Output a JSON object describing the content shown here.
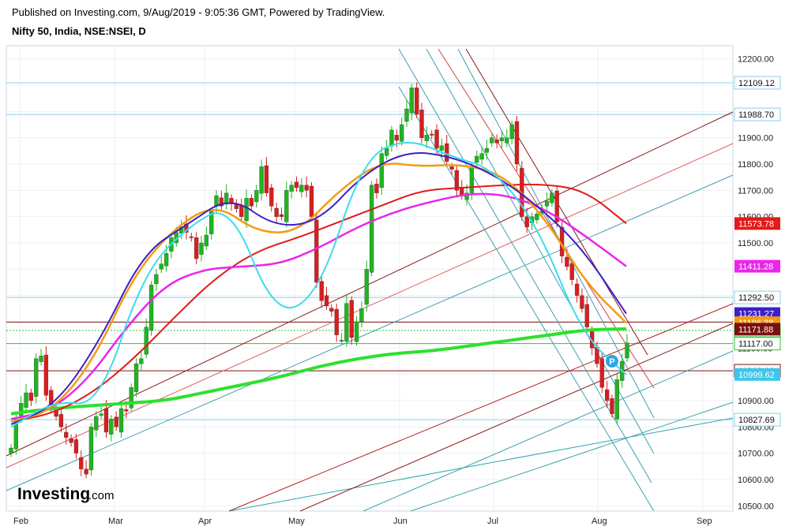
{
  "header": {
    "published": "Published on Investing.com, 9/Aug/2019 - 9:05:36 GMT, Powered by TradingView.",
    "symbol": "Nifty 50, India, NSE:NSEI, D"
  },
  "brand": {
    "name": "Investing",
    "suffix": ".com"
  },
  "chart_data": {
    "type": "candlestick",
    "title": "Nifty 50, India, NSE:NSEI, D",
    "x_labels": [
      "Feb",
      "Mar",
      "Apr",
      "May",
      "Jun",
      "Jul",
      "Aug",
      "Sep"
    ],
    "y_ticks": [
      10500,
      10600,
      10700,
      10800,
      10900,
      11000,
      11100,
      11200,
      11300,
      11400,
      11500,
      11600,
      11700,
      11800,
      11900,
      12000,
      12100,
      12200
    ],
    "y_tick_labels": [
      "10500.00",
      "10600.00",
      "10700.00",
      "10800.00",
      "10900.00",
      "11000.00",
      "11100.00",
      "11200.00",
      "11300.00",
      "11400.00",
      "11500.00",
      "11600.00",
      "11700.00",
      "11800.00",
      "11900.00",
      "12000.00",
      "12100.00",
      "12200.00"
    ],
    "ylim": [
      10480,
      12250
    ],
    "up_color": "#1fb51f",
    "down_color": "#d81e1e",
    "closes_approx": [
      10720,
      10830,
      10890,
      10930,
      10900,
      11060,
      11070,
      10920,
      10880,
      10840,
      10800,
      10760,
      10740,
      10700,
      10640,
      10620,
      10800,
      10840,
      10850,
      10780,
      10830,
      10800,
      10870,
      10860,
      10950,
      11040,
      11060,
      11180,
      11340,
      11380,
      11420,
      11460,
      11520,
      11540,
      11560,
      11540,
      11520,
      11440,
      11500,
      11530,
      11620,
      11680,
      11640,
      11690,
      11650,
      11630,
      11600,
      11670,
      11640,
      11700,
      11790,
      11690,
      11640,
      11600,
      11600,
      11700,
      11720,
      11710,
      11720,
      11700,
      11600,
      11350,
      11280,
      11260,
      11240,
      11150,
      11130,
      11270,
      11140,
      11200,
      11250,
      11400,
      11720,
      11690,
      11840,
      11860,
      11930,
      11890,
      11950,
      12010,
      12090,
      11990,
      11900,
      11910,
      11910,
      11860,
      11870,
      11810,
      11780,
      11700,
      11680,
      11690,
      11790,
      11830,
      11840,
      11860,
      11900,
      11880,
      11900,
      11900,
      11950,
      11800,
      11600,
      11560,
      11600,
      11610,
      11620,
      11660,
      11690,
      11580,
      11450,
      11410,
      11360,
      11300,
      11250,
      11180,
      11100,
      11040,
      10950,
      10900,
      10850,
      10980,
      11050,
      11120
    ],
    "annotations": {
      "horizontal_levels": [
        {
          "value": 12109.12,
          "label": "12109.12",
          "color": "#8ad0e8",
          "label_bg": "#ffffff",
          "label_fg": "#111111",
          "label_border": "#8ad0e8"
        },
        {
          "value": 11988.7,
          "label": "11988.70",
          "color": "#8ad0e8",
          "label_bg": "#ffffff",
          "label_fg": "#111111",
          "label_border": "#8ad0e8"
        },
        {
          "value": 11292.5,
          "label": "11292.50",
          "color": "#8ad0e8",
          "label_bg": "#ffffff",
          "label_fg": "#111111",
          "label_border": "#8ad0e8"
        },
        {
          "value": 11199.0,
          "label": "",
          "color": "#7a1010",
          "label_bg": "",
          "label_fg": "",
          "label_border": ""
        },
        {
          "value": 11166.94,
          "label": "11166.94",
          "color": "#2fc42f",
          "label_bg": "#ffffff",
          "label_fg": "#111111",
          "label_border": "#2fc42f",
          "dashed": true
        },
        {
          "value": 11117.0,
          "label": "11117.00",
          "color": "#2fc42f",
          "label_bg": "#ffffff",
          "label_fg": "#111111",
          "label_border": "#2fc42f"
        },
        {
          "value": 11013.63,
          "label": "11013.63",
          "color": "#7a1010",
          "label_bg": "#ffffff",
          "label_fg": "#111111",
          "label_border": "#7a1010"
        },
        {
          "value": 10827.69,
          "label": "10827.69",
          "color": "#8ad0e8",
          "label_bg": "#ffffff",
          "label_fg": "#111111",
          "label_border": "#8ad0e8"
        }
      ],
      "price_tags": [
        {
          "value": 11573.78,
          "label": "11573.78",
          "bg": "#e31a1a"
        },
        {
          "value": 11411.28,
          "label": "11411.28",
          "bg": "#ea26ea"
        },
        {
          "value": 11231.27,
          "label": "11231.27",
          "bg": "#3b20c8"
        },
        {
          "value": 11196.38,
          "label": "11196.38",
          "bg": "#f39c12"
        },
        {
          "value": 11171.88,
          "label": "11171.88",
          "bg": "#7a1010"
        },
        {
          "value": 10999.62,
          "label": "10999.62",
          "bg": "#3cc7ea"
        }
      ],
      "marker_label": "P"
    },
    "series": [
      {
        "label": "line-ema-green",
        "color": "#2ee02e",
        "values_approx": [
          10850,
          10870,
          10880,
          10890,
          10900,
          10930,
          10960,
          10990,
          11030,
          11060,
          11080,
          11090,
          11110,
          11130,
          11150,
          11170,
          11173
        ]
      },
      {
        "label": "line-ma-red",
        "color": "#e31a1a",
        "values_approx": [
          10820,
          10850,
          10930,
          11060,
          11220,
          11370,
          11470,
          11520,
          11580,
          11640,
          11700,
          11710,
          11720,
          11724,
          11700,
          11574
        ]
      },
      {
        "label": "line-ma-magenta",
        "color": "#ea26ea",
        "values_approx": [
          10830,
          10860,
          10980,
          11180,
          11340,
          11400,
          11410,
          11420,
          11480,
          11560,
          11620,
          11660,
          11690,
          11680,
          11620,
          11520,
          11411
        ]
      },
      {
        "label": "line-ma-orange",
        "color": "#f39c12",
        "values_approx": [
          10820,
          10860,
          11050,
          11380,
          11560,
          11650,
          11540,
          11540,
          11700,
          11810,
          11790,
          11800,
          11760,
          11600,
          11350,
          11196
        ]
      },
      {
        "label": "line-ma-purple",
        "color": "#3b20c8",
        "values_approx": [
          10810,
          10880,
          11120,
          11460,
          11570,
          11680,
          11560,
          11580,
          11760,
          11850,
          11830,
          11760,
          11640,
          11480,
          11231
        ]
      },
      {
        "label": "line-ma-cyan",
        "color": "#3cdcec",
        "values_approx": [
          10800,
          10900,
          10880,
          11380,
          11560,
          11650,
          11220,
          11300,
          11820,
          11900,
          11830,
          11780,
          11560,
          11150,
          10999
        ]
      }
    ]
  }
}
